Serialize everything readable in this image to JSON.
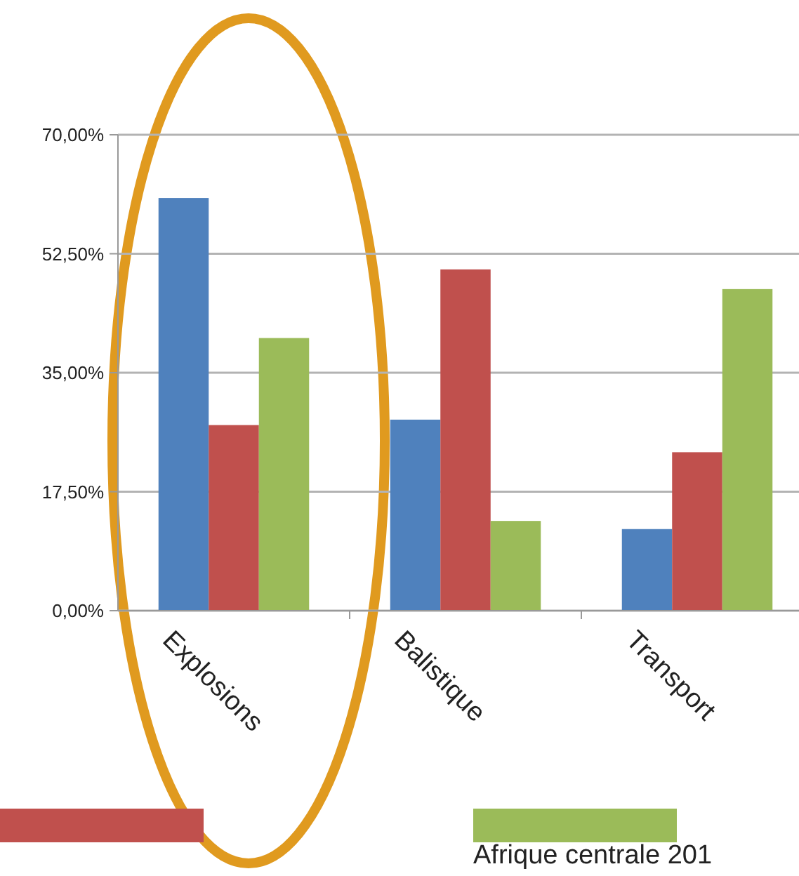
{
  "chart_data": {
    "type": "bar",
    "categories": [
      "Explosions",
      "Balistique",
      "Transport"
    ],
    "series": [
      {
        "color": "#4f81bd",
        "values": [
          60.7,
          28.1,
          12.0
        ]
      },
      {
        "color": "#c0504d",
        "values": [
          27.3,
          50.2,
          23.3
        ]
      },
      {
        "name": "Afrique centrale 201",
        "color": "#9bbb59",
        "values": [
          40.1,
          13.2,
          47.3
        ]
      }
    ],
    "ylim": [
      0,
      70
    ],
    "yticks": [
      {
        "value": 0,
        "label": "0,00%"
      },
      {
        "value": 17.5,
        "label": "17,50%"
      },
      {
        "value": 35,
        "label": "35,00%"
      },
      {
        "value": 52.5,
        "label": "52,50%"
      },
      {
        "value": 70,
        "label": "70,00%"
      }
    ],
    "grid": "y",
    "legend": "bottom"
  }
}
